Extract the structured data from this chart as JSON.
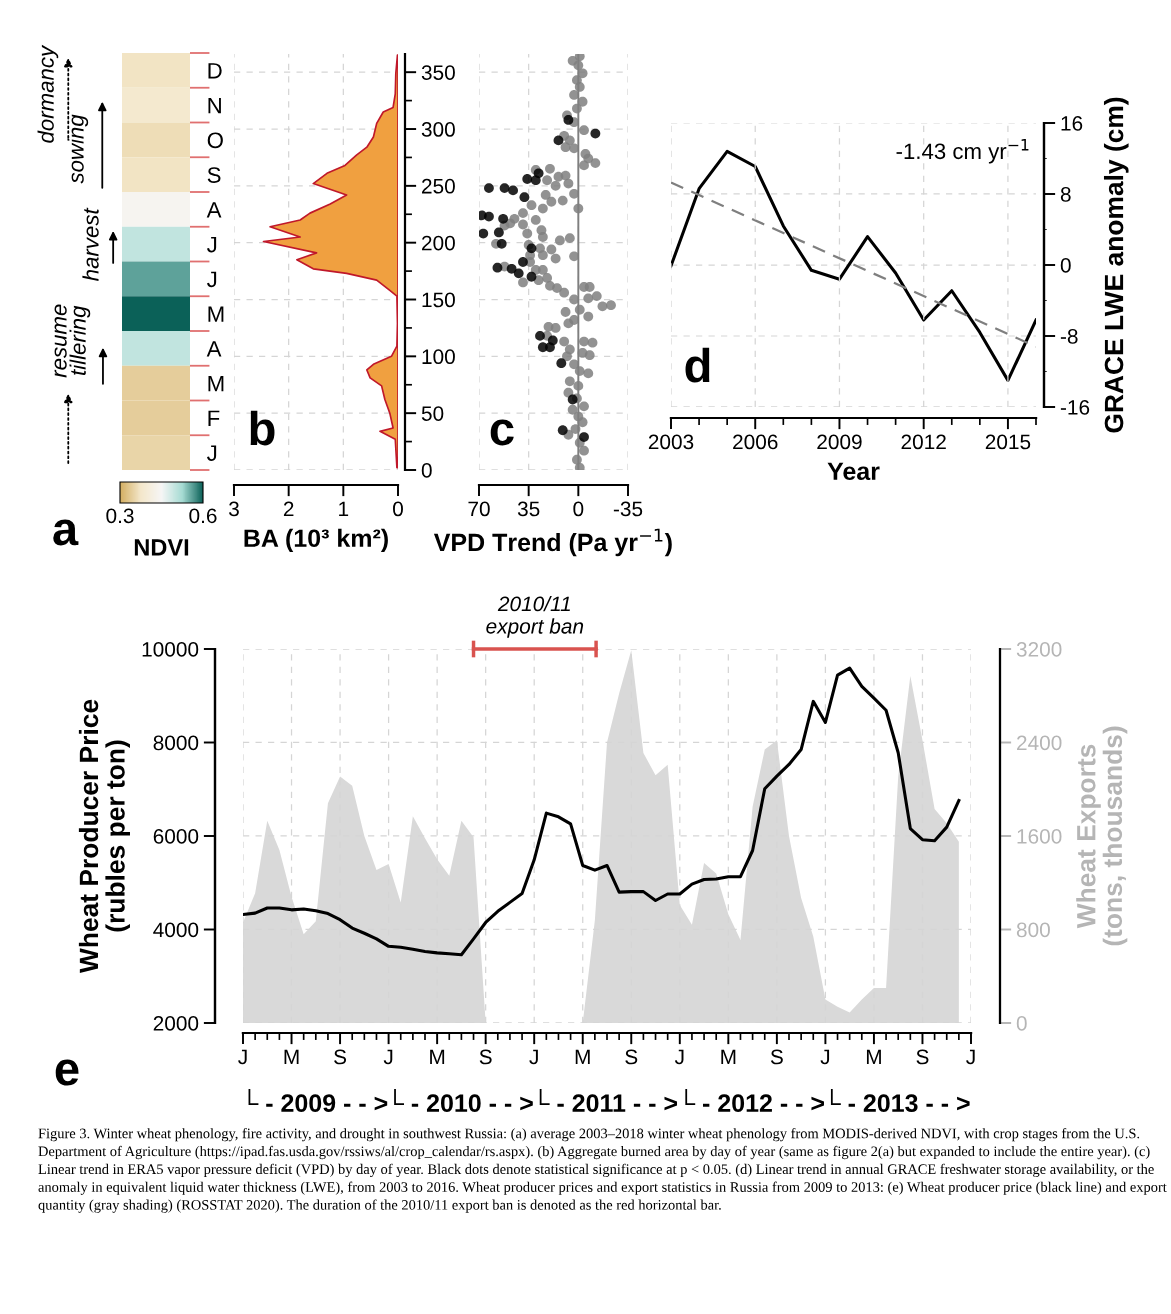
{
  "chart_data": [
    {
      "type": "heatmap",
      "title": "a",
      "categories": [
        null
      ],
      "y_categories": [
        "D",
        "N",
        "O",
        "S",
        "A",
        "J",
        "J",
        "M",
        "A",
        "M",
        "F",
        "J"
      ],
      "cells": [
        [
          0.37
        ],
        [
          0.38
        ],
        [
          0.36
        ],
        [
          0.37
        ],
        [
          0.44
        ],
        [
          0.5
        ],
        [
          0.56
        ],
        [
          0.6
        ],
        [
          0.5
        ],
        [
          0.34
        ],
        [
          0.34
        ],
        [
          0.35
        ]
      ],
      "clim": [
        0.3,
        0.6
      ],
      "cticks": [
        0.3,
        0.6
      ],
      "clabel": "NDVI",
      "annotations": [
        "dormancy",
        "sowing",
        "harvest",
        "resume\ntillering"
      ]
    },
    {
      "type": "area",
      "title": "b",
      "orientation": "horizontal",
      "xlabel": "BA (10³ km²)",
      "xlim": [
        3,
        0
      ],
      "xticks": [
        3,
        2,
        1,
        0
      ],
      "ylim": [
        0,
        366
      ],
      "yticks": [
        0,
        {
          "value": 25,
          "label": null
        },
        50,
        {
          "value": 75,
          "label": null
        },
        100,
        {
          "value": 125,
          "label": null
        },
        150,
        {
          "value": 175,
          "label": null
        },
        200,
        {
          "value": 225,
          "label": null
        },
        250,
        {
          "value": 275,
          "label": null
        },
        300,
        {
          "value": 325,
          "label": null
        },
        350
      ],
      "grid": true,
      "x": [
        2,
        27,
        34,
        37,
        50,
        62,
        74,
        81,
        88,
        93,
        100,
        109,
        129,
        153,
        158,
        167,
        173,
        177,
        185,
        191,
        201,
        205,
        214,
        220,
        226,
        234,
        242,
        252,
        261,
        268,
        277,
        284,
        293,
        305,
        315,
        319,
        331,
        349,
        365
      ],
      "series": [
        {
          "color": "#f0a040",
          "values": [
            0.02,
            0.05,
            0.33,
            0.09,
            0.15,
            0.24,
            0.3,
            0.51,
            0.57,
            0.45,
            0.12,
            0.02,
            0.01,
            0.02,
            0.15,
            0.39,
            0.94,
            1.55,
            1.85,
            1.49,
            2.46,
            1.79,
            2.34,
            1.79,
            1.61,
            1.24,
            0.94,
            1.55,
            1.3,
            0.97,
            0.76,
            0.57,
            0.45,
            0.39,
            0.27,
            0.09,
            0.05,
            0.04,
            0.01
          ]
        }
      ]
    },
    {
      "type": "scatter",
      "title": "c",
      "xlabel": "VPD Trend (Pa yr$^{−1}$)",
      "xlim": [
        70,
        -35
      ],
      "xticks": [
        70,
        35,
        0,
        -35
      ],
      "ylim": [
        0,
        366
      ],
      "yticks": [
        0,
        50,
        100,
        150,
        200,
        250,
        300,
        350
      ],
      "tick_labels": "x",
      "grid": true,
      "marker": "circle",
      "ref_lines": [
        {
          "axis": "x",
          "value": 0,
          "color": "#7f7f7f"
        }
      ],
      "series": [
        {
          "color": "#7f7f7f",
          "x": [
            4,
            -1,
            0,
            -3,
            1,
            -1,
            3,
            -3,
            1,
            8,
            3,
            -4,
            10,
            6,
            9,
            3,
            -5,
            -7,
            -12,
            -4,
            30,
            20,
            22,
            14,
            9,
            7,
            16,
            23,
            3,
            11,
            19,
            25,
            0,
            33,
            39,
            45,
            48,
            39,
            30,
            36,
            26,
            25,
            13,
            6,
            58,
            52,
            35,
            27,
            19,
            34,
            25,
            3,
            16,
            34,
            30,
            25,
            52,
            22,
            28,
            39,
            20,
            15,
            10,
            -4,
            -8,
            3,
            -7,
            -13,
            -23,
            -17,
            9,
            -1,
            -7,
            3,
            7,
            16,
            21,
            22,
            10,
            -4,
            -10,
            6,
            -3,
            -8,
            8,
            3,
            -1,
            -7,
            6,
            0,
            7,
            1,
            -4,
            4,
            0,
            -3,
            2,
            -1,
            -4,
            1,
            -1,
            7
          ],
          "values": [
            360,
            364,
            356,
            349,
            343,
            337,
            330,
            324,
            318,
            312,
            306,
            299,
            294,
            290,
            284,
            283,
            278,
            274,
            270,
            268,
            264,
            265,
            255,
            258,
            259,
            252,
            250,
            242,
            243,
            237,
            236,
            230,
            230,
            233,
            226,
            221,
            217,
            216,
            220,
            208,
            211,
            205,
            202,
            204,
            199,
            215,
            198,
            195,
            194,
            189,
            189,
            188,
            186,
            183,
            176,
            176,
            179,
            169,
            167,
            165,
            162,
            160,
            156,
            161,
            161,
            150,
            151,
            153,
            145,
            144,
            139,
            141,
            135,
            132,
            129,
            125,
            126,
            118,
            113,
            113,
            112,
            106,
            103,
            101,
            100,
            93,
            87,
            85,
            78,
            74,
            68,
            63,
            56,
            53,
            47,
            42,
            36,
            24,
            17,
            9,
            2,
            31
          ]
        },
        {
          "color": "#000000",
          "x": [
            68,
            63,
            67,
            56,
            54,
            53,
            57,
            47,
            42,
            39,
            33,
            33,
            63,
            54,
            52,
            46,
            38,
            36,
            31,
            28,
            30,
            29,
            27,
            25,
            20,
            18,
            12,
            14,
            7,
            -12,
            11,
            -4,
            4
          ],
          "values": [
            224,
            223,
            208,
            209,
            199,
            221,
            178,
            177,
            173,
            183,
            170,
            195,
            248,
            null,
            248,
            246,
            240,
            256,
            null,
            261,
            255,
            null,
            118,
            108,
            108,
            114,
            94,
            290,
            308,
            296,
            35,
            29,
            62
          ]
        }
      ]
    },
    {
      "type": "line",
      "title": "d",
      "xlabel": "Year",
      "y2label": "GRACE LWE anomaly (cm)",
      "xlim": [
        2003,
        2016
      ],
      "xticks": [
        2003,
        {
          "value": 2004,
          "label": null
        },
        {
          "value": 2005,
          "label": null
        },
        2006,
        {
          "value": 2007,
          "label": null
        },
        {
          "value": 2008,
          "label": null
        },
        2009,
        {
          "value": 2010,
          "label": null
        },
        {
          "value": 2011,
          "label": null
        },
        2012,
        {
          "value": 2013,
          "label": null
        },
        {
          "value": 2014,
          "label": null
        },
        2015,
        {
          "value": 2016,
          "label": null
        }
      ],
      "y2lim": [
        -16,
        16
      ],
      "y2ticks": [
        -16,
        {
          "value": -12,
          "label": null
        },
        -8,
        {
          "value": -4,
          "label": null
        },
        0,
        {
          "value": 4,
          "label": null
        },
        8,
        {
          "value": 12,
          "label": null
        },
        16
      ],
      "grid": true,
      "annotations": [
        "-1.43 cm yr$^{−1}$"
      ],
      "series": [
        {
          "axis": "y2",
          "color": "#000000",
          "x": [
            2003,
            2004,
            2005,
            2006,
            2007,
            2008,
            2009,
            2010,
            2011,
            2012,
            2013,
            2014,
            2015,
            2016
          ],
          "values": [
            -0.1,
            8.6,
            12.8,
            11.1,
            4.4,
            -0.6,
            -1.6,
            3.2,
            -0.9,
            -6.2,
            -2.9,
            -7.6,
            -13.0,
            -6.2
          ]
        },
        {
          "axis": "y2",
          "color": "#7f7f7f",
          "line_style": "dashed",
          "x": [
            2003,
            2016
          ],
          "values": [
            9.3,
            -9.2
          ]
        }
      ]
    },
    {
      "type": "line",
      "title": "e",
      "ylabel": "Wheat Producer Price\n(rubles per ton)",
      "y2label": "Wheat Exports\n(tons, thousands)",
      "categories": [
        "J",
        null,
        null,
        null,
        "M",
        null,
        null,
        null,
        "S",
        null,
        null,
        null,
        "J",
        null,
        null,
        null,
        "M",
        null,
        null,
        null,
        "S",
        null,
        null,
        null,
        "J",
        null,
        null,
        null,
        "M",
        null,
        null,
        null,
        "S",
        null,
        null,
        null,
        "J",
        null,
        null,
        null,
        "M",
        null,
        null,
        null,
        "S",
        null,
        null,
        null,
        "J",
        null,
        null,
        null,
        "M",
        null,
        null,
        null,
        "S",
        null,
        null,
        null,
        "J"
      ],
      "ylim": [
        2000,
        10000
      ],
      "yticks": [
        2000,
        4000,
        6000,
        8000,
        10000
      ],
      "y2lim": [
        0,
        3200
      ],
      "y2ticks": [
        0,
        800,
        1600,
        2400,
        3200
      ],
      "grid": true,
      "annotations": [
        "2010/11\nexport ban",
        "└ - 2009 - - >",
        "└ - 2010 - - >",
        "└ - 2011 - - >",
        "└ - 2012 - - >",
        "└ - 2013 - - >",
        "Figure 3. Winter wheat phenology, fire activity, and drought in southwest Russia: (a) average 2003–2018 winter wheat phenology from MODIS-derived NDVI, with crop stages from the U.S. Department of Agriculture (https://ipad.fas.usda.gov/rssiws/al/crop_calendar/rs.aspx). (b) Aggregate burned area by day of year (same as figure 2(a) but expanded to include the entire year). (c) Linear trend in ERA5 vapor pressure deficit (VPD) by day of year. Black dots denote statistical significance at p < 0.05. (d) Linear trend in annual GRACE freshwater storage availability, or the anomaly in equivalent liquid water thickness (LWE), from 2003 to 2016. Wheat producer prices and export statistics in Russia from 2009 to 2013: (e) Wheat producer price (black line) and export quantity (gray shading) (ROSSTAT 2020). The duration of the 2010/11 export ban is denoted as the red horizontal bar."
      ],
      "series": [
        {
          "type": "area",
          "axis": "y2",
          "color": "#d9d9d9",
          "values": [
            860,
            1110,
            1730,
            1480,
            1080,
            760,
            870,
            1880,
            2110,
            2030,
            1600,
            1310,
            1360,
            1030,
            1770,
            1580,
            1400,
            1260,
            1730,
            1590,
            0,
            0,
            0,
            0,
            0,
            0,
            0,
            0,
            0,
            880,
            2400,
            2820,
            3190,
            2310,
            2120,
            2210,
            1010,
            840,
            1370,
            1280,
            930,
            710,
            1850,
            2340,
            2420,
            1600,
            1070,
            740,
            200,
            140,
            90,
            200,
            300,
            300,
            2110,
            2970,
            2420,
            1830,
            1710,
            1550,
            null
          ]
        },
        {
          "type": "line",
          "axis": "y",
          "color": "#000000",
          "values": [
            4320,
            4350,
            4460,
            4460,
            4420,
            4440,
            4400,
            4340,
            4210,
            4030,
            3920,
            3800,
            3640,
            3620,
            3580,
            3530,
            3500,
            3480,
            3460,
            3800,
            4150,
            4390,
            4580,
            4770,
            5490,
            6490,
            6410,
            6260,
            5370,
            5270,
            5370,
            4800,
            4810,
            4810,
            4620,
            4760,
            4760,
            4970,
            5070,
            5080,
            5130,
            5130,
            5690,
            7010,
            7280,
            7530,
            7850,
            8880,
            8430,
            9440,
            9590,
            9200,
            8950,
            8690,
            7780,
            6160,
            5920,
            5900,
            6190,
            6760,
            null
          ]
        }
      ]
    }
  ]
}
